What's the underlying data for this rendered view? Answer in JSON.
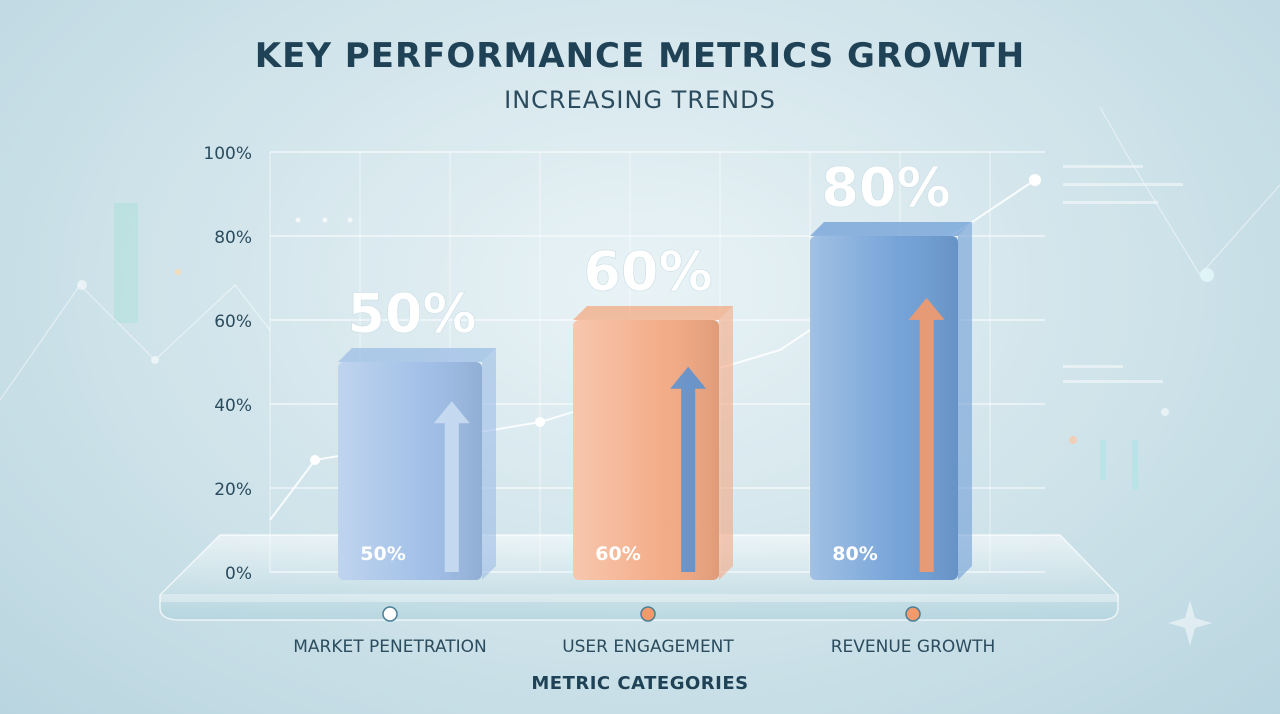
{
  "chart_data": {
    "type": "bar",
    "title": "KEY PERFORMANCE METRICS GROWTH",
    "subtitle": "INCREASING TRENDS",
    "xlabel": "METRIC CATEGORIES",
    "ylabel": "",
    "categories": [
      "MARKET PENETRATION",
      "USER ENGAGEMENT",
      "REVENUE GROWTH"
    ],
    "values": [
      50,
      60,
      80
    ],
    "value_labels": [
      "50%",
      "60%",
      "80%"
    ],
    "bar_colors": [
      "#9dbde6",
      "#f3a983",
      "#6f9fd6"
    ],
    "yticks": [
      "0%",
      "20%",
      "40%",
      "60%",
      "80%",
      "100%"
    ],
    "ylim": [
      0,
      100
    ],
    "grid": true,
    "legend": "none"
  }
}
